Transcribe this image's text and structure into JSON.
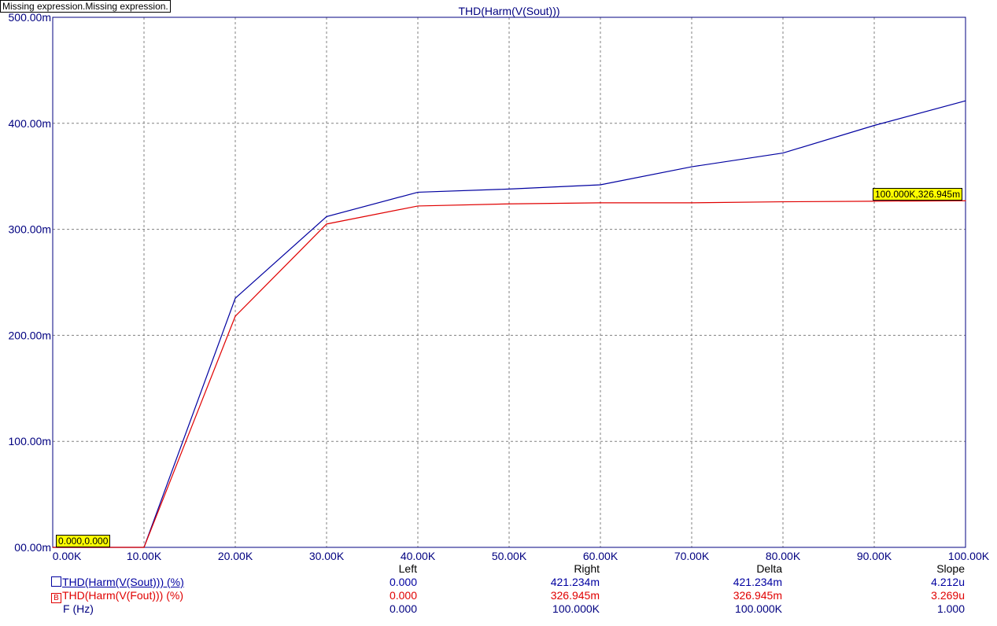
{
  "expression_box": "Missing expression.Missing expression.",
  "colors": {
    "blue": "#0000a0",
    "red": "#e00000",
    "axis": "#000080",
    "grid": "#808080",
    "cursor_bg": "#ffff00"
  },
  "chart_data": {
    "type": "line",
    "title": "THD(Harm(V(Sout)))",
    "x": [
      0,
      10000,
      20000,
      30000,
      40000,
      50000,
      60000,
      70000,
      80000,
      90000,
      100000
    ],
    "xlim": [
      0,
      100000
    ],
    "ylim": [
      0,
      0.5
    ],
    "x_ticks": [
      "0.00K",
      "10.00K",
      "20.00K",
      "30.00K",
      "40.00K",
      "50.00K",
      "60.00K",
      "70.00K",
      "80.00K",
      "90.00K",
      "100.00K"
    ],
    "y_ticks": [
      "00.00m",
      "100.00m",
      "200.00m",
      "300.00m",
      "400.00m",
      "500.00m"
    ],
    "grid": true,
    "series": [
      {
        "name": "THD(Harm(V(Sout))) (%)",
        "color": "#0000a0",
        "values": [
          0.0,
          0.0,
          0.235,
          0.312,
          0.335,
          0.338,
          0.342,
          0.359,
          0.372,
          0.398,
          0.421234
        ]
      },
      {
        "name": "THD(Harm(V(Fout))) (%)",
        "color": "#e00000",
        "values": [
          0.0,
          0.0,
          0.218,
          0.305,
          0.322,
          0.324,
          0.325,
          0.325,
          0.326,
          0.3265,
          0.326945
        ]
      }
    ],
    "cursors": [
      {
        "label": "0.000,0.000"
      },
      {
        "label": "100.000K,326.945m"
      }
    ]
  },
  "table": {
    "headers": {
      "left": "Left",
      "right": "Right",
      "delta": "Delta",
      "slope": "Slope"
    },
    "rows": [
      {
        "marker": "",
        "label": "THD(Harm(V(Sout))) (%)",
        "left": "0.000",
        "right": "421.234m",
        "delta": "421.234m",
        "slope": "4.212u",
        "color": "#0000a0"
      },
      {
        "marker": "B",
        "label": "THD(Harm(V(Fout))) (%)",
        "left": "0.000",
        "right": "326.945m",
        "delta": "326.945m",
        "slope": "3.269u",
        "color": "#e00000"
      },
      {
        "marker": "",
        "label": "F (Hz)",
        "left": "0.000",
        "right": "100.000K",
        "delta": "100.000K",
        "slope": "1.000",
        "color": "#000080"
      }
    ]
  }
}
